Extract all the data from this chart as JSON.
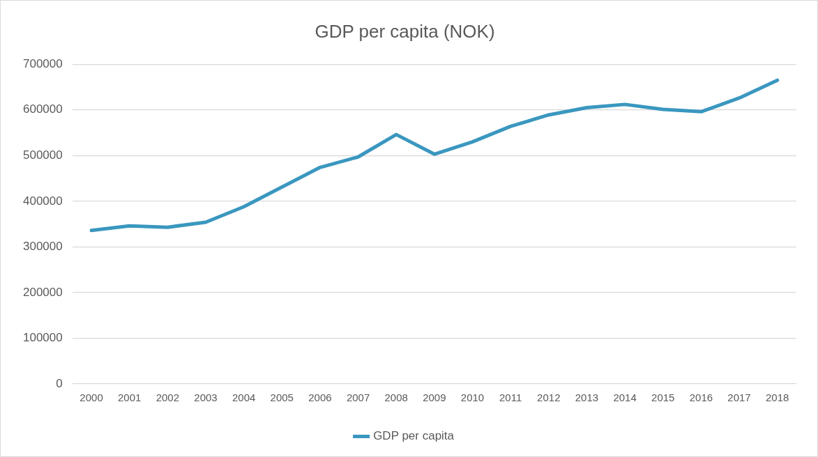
{
  "chart_data": {
    "type": "line",
    "title": "GDP per capita (NOK)",
    "categories": [
      "2000",
      "2001",
      "2002",
      "2003",
      "2004",
      "2005",
      "2006",
      "2007",
      "2008",
      "2009",
      "2010",
      "2011",
      "2012",
      "2013",
      "2014",
      "2015",
      "2016",
      "2017",
      "2018"
    ],
    "series": [
      {
        "name": "GDP per capita",
        "color": "#3a97bf",
        "values": [
          336000,
          346000,
          343000,
          354000,
          388000,
          431000,
          474000,
          497000,
          546000,
          503000,
          530000,
          564000,
          589000,
          605000,
          612000,
          601000,
          596000,
          626000,
          665000
        ]
      }
    ],
    "ylim": [
      0,
      700000
    ],
    "yticks": [
      0,
      100000,
      200000,
      300000,
      400000,
      500000,
      600000,
      700000
    ],
    "grid": "y",
    "legend": "bottom",
    "marker": "none",
    "line_style": "solid"
  }
}
